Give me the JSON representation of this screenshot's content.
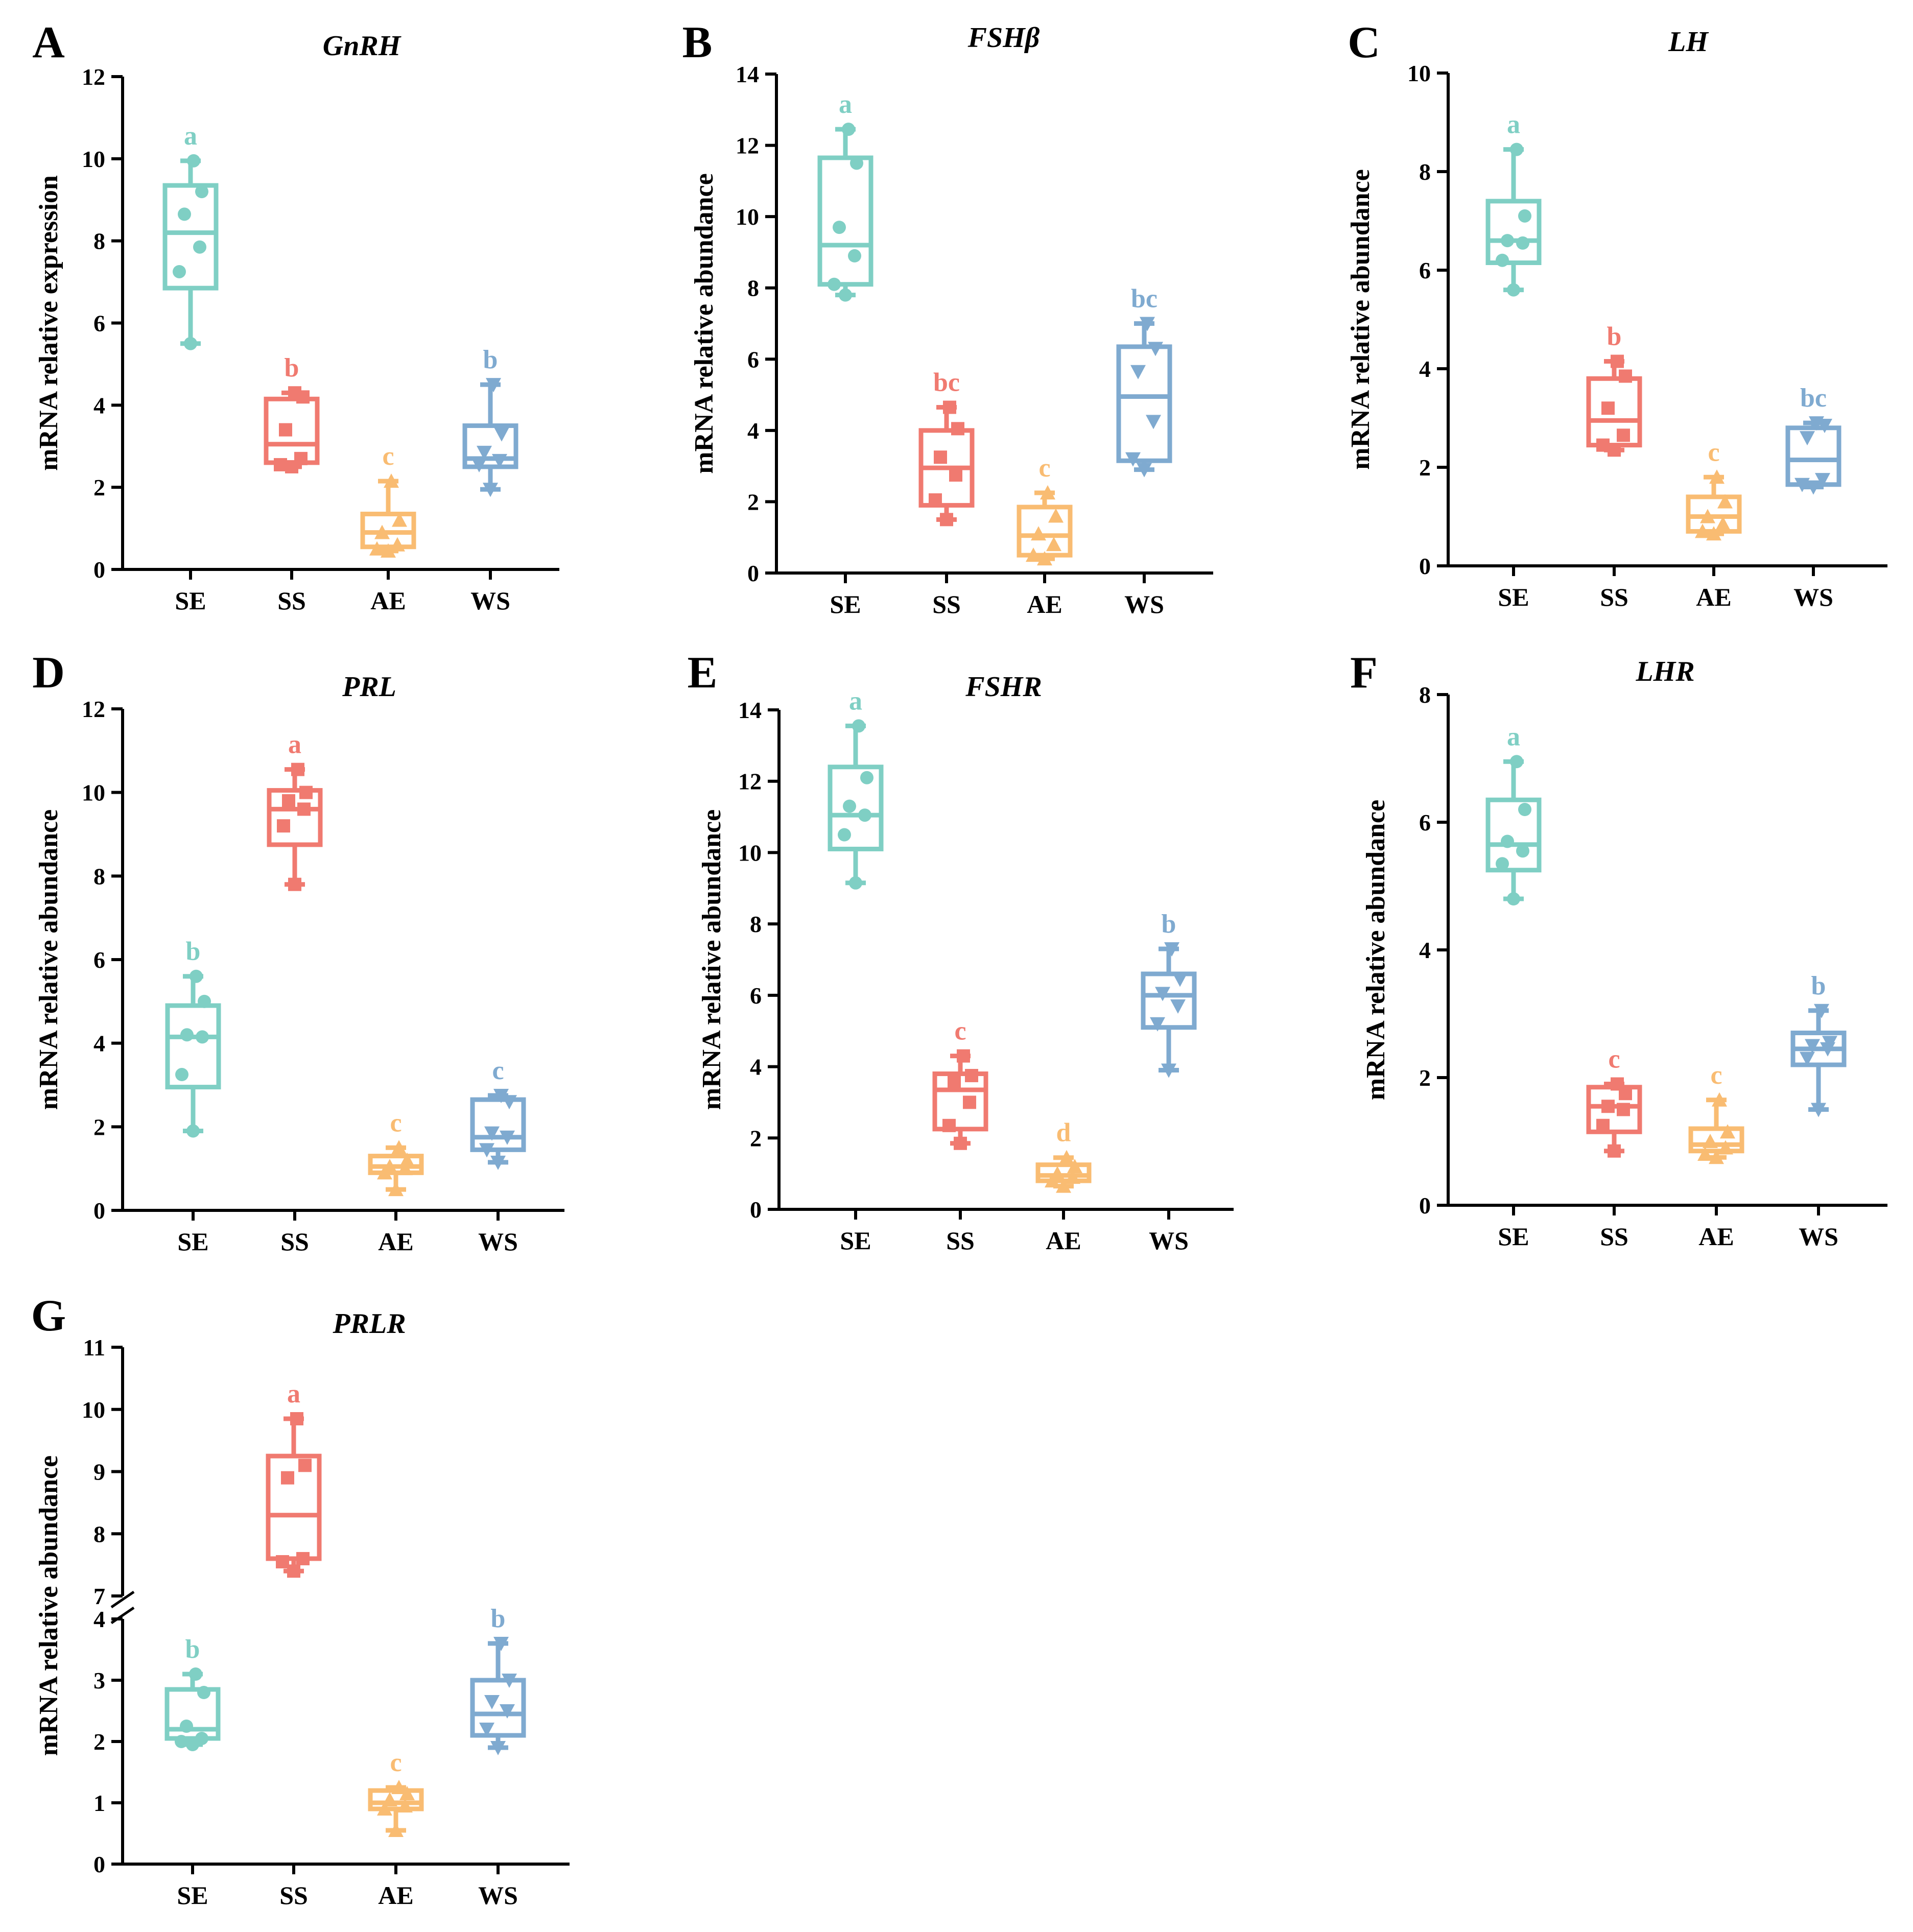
{
  "colors": {
    "SE": "#7fcfc4",
    "SS": "#f07a70",
    "AE": "#f9bc72",
    "WS": "#7faad0"
  },
  "markers": {
    "SE": "circle",
    "SS": "square",
    "AE": "triangle-up",
    "WS": "triangle-down"
  },
  "chart_data": [
    {
      "panel": "A",
      "type": "box",
      "title": "GnRH",
      "ylabel": "mRNA relative expression",
      "categories": [
        "SE",
        "SS",
        "AE",
        "WS"
      ],
      "ylim": [
        0,
        12
      ],
      "yticks": [
        0,
        2,
        4,
        6,
        8,
        10,
        12
      ],
      "series": [
        {
          "name": "SE",
          "min": 5.5,
          "q1": 6.85,
          "median": 8.2,
          "q3": 9.35,
          "max": 9.95,
          "points": [
            5.5,
            7.25,
            7.85,
            8.65,
            9.2,
            9.95
          ],
          "letter": "a"
        },
        {
          "name": "SS",
          "min": 2.5,
          "q1": 2.6,
          "median": 3.05,
          "q3": 4.15,
          "max": 4.3,
          "points": [
            2.5,
            2.55,
            2.7,
            3.4,
            4.2,
            4.3
          ],
          "letter": "b"
        },
        {
          "name": "AE",
          "min": 0.45,
          "q1": 0.55,
          "median": 0.9,
          "q3": 1.35,
          "max": 2.15,
          "points": [
            0.45,
            0.5,
            0.6,
            0.9,
            1.2,
            2.15
          ],
          "letter": "c"
        },
        {
          "name": "WS",
          "min": 1.95,
          "q1": 2.5,
          "median": 2.7,
          "q3": 3.5,
          "max": 4.5,
          "points": [
            1.95,
            2.55,
            2.65,
            2.85,
            3.3,
            4.5
          ],
          "letter": "b"
        }
      ]
    },
    {
      "panel": "B",
      "type": "box",
      "title": "FSHβ",
      "ylabel": "mRNA relative abundance",
      "categories": [
        "SE",
        "SS",
        "AE",
        "WS"
      ],
      "ylim": [
        0,
        14
      ],
      "yticks": [
        0,
        2,
        4,
        6,
        8,
        10,
        12,
        14
      ],
      "series": [
        {
          "name": "SE",
          "min": 7.8,
          "q1": 8.1,
          "median": 9.2,
          "q3": 11.65,
          "max": 12.45,
          "points": [
            7.8,
            8.1,
            8.9,
            9.7,
            11.5,
            12.45
          ],
          "letter": "a"
        },
        {
          "name": "SS",
          "min": 1.5,
          "q1": 1.9,
          "median": 2.95,
          "q3": 4.0,
          "max": 4.65,
          "points": [
            1.5,
            2.05,
            2.75,
            3.25,
            4.05,
            4.65
          ],
          "letter": "bc"
        },
        {
          "name": "AE",
          "min": 0.4,
          "q1": 0.5,
          "median": 1.05,
          "q3": 1.85,
          "max": 2.25,
          "points": [
            0.4,
            0.5,
            0.8,
            1.1,
            1.6,
            2.25
          ],
          "letter": "c"
        },
        {
          "name": "WS",
          "min": 2.9,
          "q1": 3.15,
          "median": 4.95,
          "q3": 6.35,
          "max": 7.0,
          "points": [
            2.9,
            3.2,
            4.25,
            5.65,
            6.3,
            7.0
          ],
          "letter": "bc"
        }
      ]
    },
    {
      "panel": "C",
      "type": "box",
      "title": "LH",
      "ylabel": "mRNA relative abundance",
      "categories": [
        "SE",
        "SS",
        "AE",
        "WS"
      ],
      "ylim": [
        0,
        10
      ],
      "yticks": [
        0,
        2,
        4,
        6,
        8,
        10
      ],
      "series": [
        {
          "name": "SE",
          "min": 5.6,
          "q1": 6.15,
          "median": 6.6,
          "q3": 7.4,
          "max": 8.45,
          "points": [
            5.6,
            6.2,
            6.55,
            6.6,
            7.1,
            8.45
          ],
          "letter": "a"
        },
        {
          "name": "SS",
          "min": 2.35,
          "q1": 2.45,
          "median": 2.95,
          "q3": 3.8,
          "max": 4.15,
          "points": [
            2.35,
            2.45,
            2.65,
            3.2,
            3.85,
            4.15
          ],
          "letter": "b"
        },
        {
          "name": "AE",
          "min": 0.65,
          "q1": 0.7,
          "median": 1.0,
          "q3": 1.4,
          "max": 1.8,
          "points": [
            0.65,
            0.7,
            0.85,
            1.0,
            1.3,
            1.8
          ],
          "letter": "c"
        },
        {
          "name": "WS",
          "min": 1.6,
          "q1": 1.65,
          "median": 2.15,
          "q3": 2.8,
          "max": 2.9,
          "points": [
            1.6,
            1.65,
            1.75,
            2.6,
            2.85,
            2.9
          ],
          "letter": "bc"
        }
      ]
    },
    {
      "panel": "D",
      "type": "box",
      "title": "PRL",
      "ylabel": "mRNA relative abundance",
      "categories": [
        "SE",
        "SS",
        "AE",
        "WS"
      ],
      "ylim": [
        0,
        12
      ],
      "yticks": [
        0,
        2,
        4,
        6,
        8,
        10,
        12
      ],
      "series": [
        {
          "name": "SE",
          "min": 1.9,
          "q1": 2.95,
          "median": 4.15,
          "q3": 4.9,
          "max": 5.6,
          "points": [
            1.9,
            3.25,
            4.15,
            4.2,
            5.0,
            5.6
          ],
          "letter": "b"
        },
        {
          "name": "SS",
          "min": 7.8,
          "q1": 8.75,
          "median": 9.6,
          "q3": 10.05,
          "max": 10.55,
          "points": [
            7.8,
            9.2,
            9.6,
            9.8,
            10.0,
            10.55
          ],
          "letter": "a"
        },
        {
          "name": "AE",
          "min": 0.5,
          "q1": 0.9,
          "median": 1.05,
          "q3": 1.3,
          "max": 1.5,
          "points": [
            0.5,
            0.9,
            1.0,
            1.05,
            1.2,
            1.5
          ],
          "letter": "c"
        },
        {
          "name": "WS",
          "min": 1.15,
          "q1": 1.45,
          "median": 1.75,
          "q3": 2.65,
          "max": 2.75,
          "points": [
            1.15,
            1.45,
            1.75,
            1.85,
            2.6,
            2.75
          ],
          "letter": "c"
        }
      ]
    },
    {
      "panel": "E",
      "type": "box",
      "title": "FSHR",
      "ylabel": "mRNA relative abundance",
      "categories": [
        "SE",
        "SS",
        "AE",
        "WS"
      ],
      "ylim": [
        0,
        14
      ],
      "yticks": [
        0,
        2,
        4,
        6,
        8,
        10,
        12,
        14
      ],
      "series": [
        {
          "name": "SE",
          "min": 9.15,
          "q1": 10.1,
          "median": 11.05,
          "q3": 12.4,
          "max": 13.55,
          "points": [
            9.15,
            10.5,
            11.05,
            11.3,
            12.1,
            13.55
          ],
          "letter": "a"
        },
        {
          "name": "SS",
          "min": 1.85,
          "q1": 2.25,
          "median": 3.35,
          "q3": 3.8,
          "max": 4.3,
          "points": [
            1.85,
            2.35,
            3.0,
            3.55,
            3.75,
            4.3
          ],
          "letter": "c"
        },
        {
          "name": "AE",
          "min": 0.65,
          "q1": 0.8,
          "median": 0.95,
          "q3": 1.25,
          "max": 1.45,
          "points": [
            0.65,
            0.8,
            0.9,
            1.0,
            1.2,
            1.45
          ],
          "letter": "d"
        },
        {
          "name": "WS",
          "min": 3.9,
          "q1": 5.1,
          "median": 6.0,
          "q3": 6.6,
          "max": 7.3,
          "points": [
            3.9,
            5.2,
            5.7,
            6.05,
            6.45,
            7.3
          ],
          "letter": "b"
        }
      ]
    },
    {
      "panel": "F",
      "type": "box",
      "title": "LHR",
      "ylabel": "mRNA relative abundance",
      "categories": [
        "SE",
        "SS",
        "AE",
        "WS"
      ],
      "ylim": [
        0,
        8
      ],
      "yticks": [
        0,
        2,
        4,
        6,
        8
      ],
      "series": [
        {
          "name": "SE",
          "min": 4.8,
          "q1": 5.25,
          "median": 5.65,
          "q3": 6.35,
          "max": 6.95,
          "points": [
            4.8,
            5.35,
            5.55,
            5.7,
            6.2,
            6.95
          ],
          "letter": "a"
        },
        {
          "name": "SS",
          "min": 0.85,
          "q1": 1.15,
          "median": 1.55,
          "q3": 1.85,
          "max": 1.9,
          "points": [
            0.85,
            1.25,
            1.5,
            1.55,
            1.75,
            1.9
          ],
          "letter": "c"
        },
        {
          "name": "AE",
          "min": 0.75,
          "q1": 0.85,
          "median": 0.95,
          "q3": 1.2,
          "max": 1.65,
          "points": [
            0.75,
            0.8,
            0.9,
            1.0,
            1.15,
            1.65
          ],
          "letter": "c"
        },
        {
          "name": "WS",
          "min": 1.5,
          "q1": 2.2,
          "median": 2.45,
          "q3": 2.7,
          "max": 3.05,
          "points": [
            1.5,
            2.3,
            2.45,
            2.5,
            2.55,
            3.05
          ],
          "letter": "b"
        }
      ]
    },
    {
      "panel": "G",
      "type": "box",
      "title": "PRLR",
      "ylabel": "mRNA relative abundance",
      "categories": [
        "SE",
        "SS",
        "AE",
        "WS"
      ],
      "ylim": [
        0,
        11
      ],
      "yticks": [
        0,
        1,
        2,
        3,
        4,
        7,
        8,
        9,
        10,
        11
      ],
      "axis_break": [
        4,
        7
      ],
      "series": [
        {
          "name": "SE",
          "min": 1.95,
          "q1": 2.05,
          "median": 2.2,
          "q3": 2.85,
          "max": 3.1,
          "points": [
            1.95,
            2.0,
            2.05,
            2.25,
            2.8,
            3.1
          ],
          "letter": "b"
        },
        {
          "name": "SS",
          "min": 7.4,
          "q1": 7.6,
          "median": 8.3,
          "q3": 9.25,
          "max": 9.85,
          "points": [
            7.4,
            7.55,
            7.6,
            8.9,
            9.1,
            9.85
          ],
          "letter": "a"
        },
        {
          "name": "AE",
          "min": 0.55,
          "q1": 0.9,
          "median": 1.0,
          "q3": 1.2,
          "max": 1.25,
          "points": [
            0.55,
            0.9,
            0.95,
            1.05,
            1.15,
            1.25
          ],
          "letter": "c"
        },
        {
          "name": "WS",
          "min": 1.9,
          "q1": 2.1,
          "median": 2.45,
          "q3": 3.0,
          "max": 3.6,
          "points": [
            1.9,
            2.2,
            2.5,
            2.65,
            3.0,
            3.6
          ],
          "letter": "b"
        }
      ]
    }
  ]
}
